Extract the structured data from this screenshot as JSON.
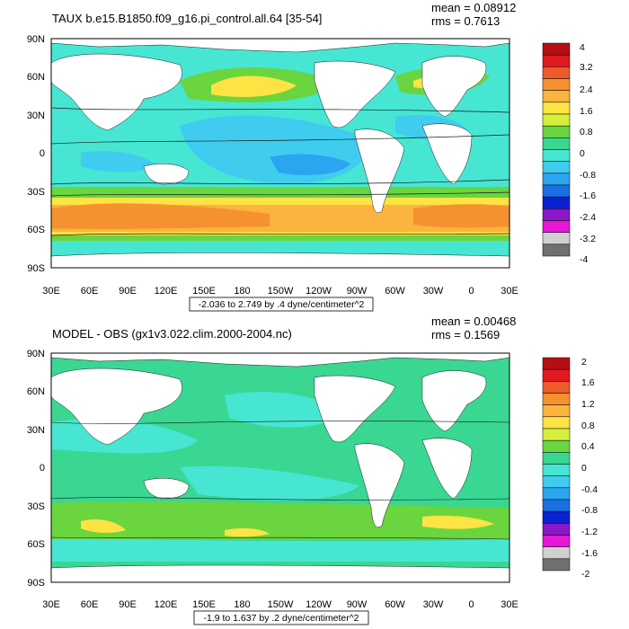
{
  "panels": [
    {
      "title": "TAUX b.e15.B1850.f09_g16.pi_control.all.64 [35-54]",
      "mean_text": "mean = 0.08912",
      "rms_text": "rms = 0.7613",
      "caption": "-2.036 to 2.749 by .4 dyne/centimeter^2",
      "lat_labels": [
        "90N",
        "60N",
        "30N",
        "0",
        "30S",
        "60S",
        "90S"
      ],
      "lon_labels": [
        "30E",
        "60E",
        "90E",
        "120E",
        "150E",
        "180",
        "150W",
        "120W",
        "90W",
        "60W",
        "30W",
        "0",
        "30E"
      ],
      "colorbar_labels": [
        "4",
        "3.2",
        "2.4",
        "1.6",
        "0.8",
        "0",
        "-0.8",
        "-1.6",
        "-2.4",
        "-3.2",
        "-4"
      ],
      "colorbar_colors": [
        "#b50e14",
        "#e2191f",
        "#ee5a2a",
        "#f6912f",
        "#fab43f",
        "#fde343",
        "#d6ef3d",
        "#6ad53e",
        "#39d792",
        "#46e6d3",
        "#3fccef",
        "#2aa5ef",
        "#1a6fe1",
        "#0c21cf",
        "#8a18c9",
        "#e817d7",
        "#d0d0d0",
        "#707070"
      ]
    },
    {
      "title": "MODEL - OBS (gx1v3.022.clim.2000-2004.nc)",
      "mean_text": "mean = 0.00468",
      "rms_text": "rms = 0.1569",
      "caption": "-1.9 to 1.637 by .2 dyne/centimeter^2",
      "lat_labels": [
        "90N",
        "60N",
        "30N",
        "0",
        "30S",
        "60S",
        "90S"
      ],
      "lon_labels": [
        "30E",
        "60E",
        "90E",
        "120E",
        "150E",
        "180",
        "150W",
        "120W",
        "90W",
        "60W",
        "30W",
        "0",
        "30E"
      ],
      "colorbar_labels": [
        "2",
        "1.6",
        "1.2",
        "0.8",
        "0.4",
        "0",
        "-0.4",
        "-0.8",
        "-1.2",
        "-1.6",
        "-2"
      ],
      "colorbar_colors": [
        "#b50e14",
        "#e2191f",
        "#ee5a2a",
        "#f6912f",
        "#fab43f",
        "#fde343",
        "#d6ef3d",
        "#6ad53e",
        "#39d792",
        "#46e6d3",
        "#3fccef",
        "#2aa5ef",
        "#1a6fe1",
        "#0c21cf",
        "#8a18c9",
        "#e817d7",
        "#d0d0d0",
        "#707070"
      ]
    }
  ],
  "colors": {
    "land": "#ffffff",
    "ocean_background": "#39d792",
    "contour_line": "#1a1a1a"
  }
}
